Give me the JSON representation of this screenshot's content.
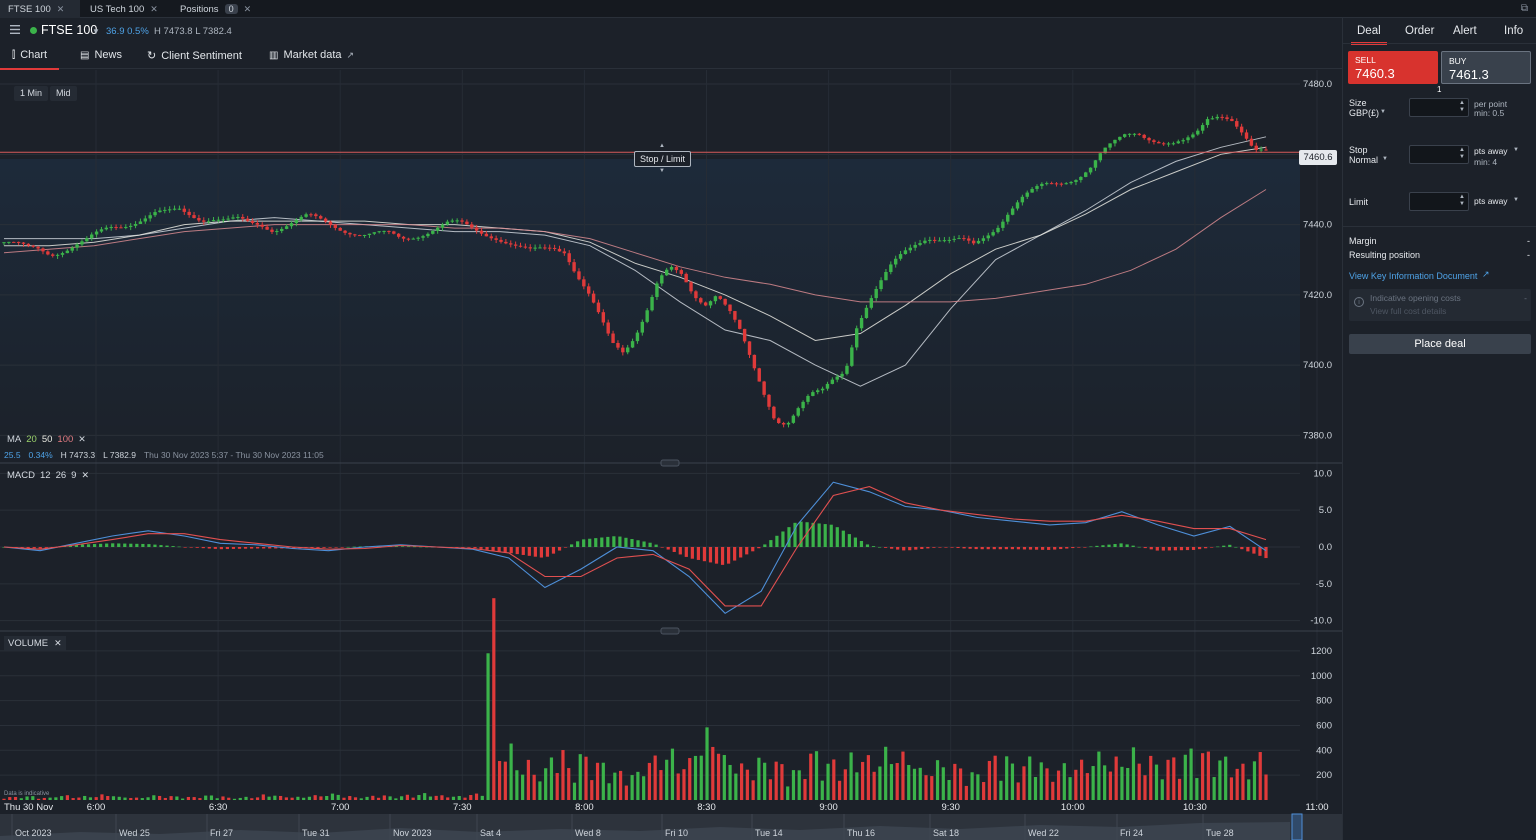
{
  "tabs": [
    {
      "label": "FTSE 100",
      "active": true
    },
    {
      "label": "US Tech 100",
      "active": false
    },
    {
      "label": "Positions",
      "badge": "0",
      "active": false
    }
  ],
  "market": {
    "name": "FTSE 100",
    "change": "36.9  0.5%",
    "high_low": "H 7473.8  L 7382.4"
  },
  "subnav": {
    "chart": "Chart",
    "news": "News",
    "sentiment": "Client Sentiment",
    "market_data": "Market data"
  },
  "timeframe": {
    "interval": "1 Min",
    "price_type": "Mid"
  },
  "chart": {
    "stop_limit_label": "Stop / Limit",
    "current_price_label": "7460.6",
    "ma_label": "MA",
    "ma_periods": [
      "20",
      "50",
      "100"
    ],
    "ma_info": [
      "25.5",
      "0.34%",
      "H 7473.3",
      "L 7382.9",
      "Thu 30 Nov 2023 5:37 - Thu 30 Nov 2023 11:05"
    ],
    "macd_label": "MACD",
    "macd_params": [
      "12",
      "26",
      "9"
    ],
    "volume_label": "VOLUME",
    "disclaimer": "Data is indicative",
    "colors": {
      "up": "#3bb34a",
      "down": "#e03a3a",
      "ma20": "#cfd5dc",
      "ma50": "#e8e8e0",
      "ma100": "#d88a8f",
      "macd": "#4e8fd8",
      "signal": "#e05050"
    }
  },
  "chart_data": [
    {
      "type": "candlestick",
      "title": "FTSE 100",
      "x_ticks": [
        "Thu 30 Nov",
        "6:00",
        "6:30",
        "7:00",
        "7:30",
        "8:00",
        "8:30",
        "9:00",
        "9:30",
        "10:00",
        "10:30",
        "11:00"
      ],
      "y_ticks": [
        7380.0,
        7400.0,
        7420.0,
        7440.0,
        7460.0,
        7480.0
      ],
      "ylim": [
        7373,
        7484
      ],
      "close_series": [
        7435,
        7434,
        7433,
        7433,
        7432,
        7433,
        7434,
        7435,
        7437,
        7439,
        7440,
        7441,
        7442,
        7443,
        7443,
        7444,
        7443,
        7442,
        7442,
        7441,
        7441,
        7440,
        7440,
        7439,
        7440,
        7441,
        7442,
        7441,
        7440,
        7439,
        7438,
        7437,
        7437,
        7437,
        7436,
        7437,
        7438,
        7439,
        7440,
        7440,
        7439,
        7438,
        7437,
        7435,
        7433,
        7432,
        7433,
        7434,
        7433,
        7426,
        7420,
        7413,
        7406,
        7404,
        7409,
        7416,
        7424,
        7427,
        7425,
        7420,
        7418,
        7421,
        7416,
        7409,
        7400,
        7392,
        7385,
        7384,
        7388,
        7391,
        7392,
        7396,
        7399,
        7412,
        7418,
        7423,
        7428,
        7432,
        7435,
        7437,
        7436,
        7435,
        7435,
        7434,
        7437,
        7440,
        7444,
        7447,
        7449,
        7451,
        7452,
        7453,
        7454,
        7456,
        7460,
        7463,
        7466,
        7467,
        7465,
        7463,
        7462,
        7463,
        7466,
        7471,
        7472,
        7470,
        7465,
        7460,
        7461
      ],
      "ma_series": [
        {
          "name": "20",
          "values": [
            7436,
            7436,
            7436,
            7437,
            7439,
            7441,
            7442,
            7441,
            7440,
            7439,
            7438,
            7438,
            7437,
            7434,
            7427,
            7418,
            7410,
            7407,
            7400,
            7394,
            7400,
            7416,
            7430,
            7437,
            7444,
            7452,
            7458,
            7462,
            7465
          ]
        },
        {
          "name": "50",
          "values": [
            7434,
            7434,
            7435,
            7437,
            7440,
            7441,
            7441,
            7441,
            7441,
            7440,
            7440,
            7439,
            7438,
            7435,
            7429,
            7425,
            7420,
            7414,
            7407,
            7409,
            7417,
            7426,
            7433,
            7437,
            7443,
            7450,
            7455,
            7460,
            7462
          ]
        },
        {
          "name": "100",
          "values": [
            7432,
            7433,
            7434,
            7436,
            7438,
            7439,
            7440,
            7440,
            7440,
            7440,
            7439,
            7439,
            7438,
            7436,
            7432,
            7428,
            7425,
            7423,
            7420,
            7418,
            7418,
            7418,
            7419,
            7421,
            7423,
            7427,
            7433,
            7442,
            7450
          ]
        }
      ],
      "current_price": 7460.6
    },
    {
      "type": "line",
      "title": "MACD 12 26 9",
      "y_ticks": [
        -10.0,
        -5.0,
        0.0,
        5.0,
        10.0
      ],
      "ylim": [
        -11,
        11
      ],
      "series": [
        {
          "name": "MACD",
          "values": [
            0,
            -0.5,
            0.5,
            1.5,
            2.2,
            1.5,
            0.5,
            0.3,
            -0.2,
            -0.5,
            0,
            0.3,
            0,
            -0.3,
            -1.5,
            -5.5,
            -3,
            0,
            -0.5,
            -4,
            -9,
            -6,
            3,
            8.8,
            7.5,
            5.5,
            5,
            4,
            3.5,
            3,
            3.3,
            4.8,
            3,
            1.5,
            2.8,
            -0.5
          ]
        },
        {
          "name": "Signal",
          "values": [
            0,
            -0.3,
            0.3,
            1,
            1.8,
            1.8,
            1,
            0.5,
            0,
            -0.3,
            -0.2,
            0.2,
            0,
            -0.2,
            -0.8,
            -4,
            -4,
            -1.5,
            -1,
            -3,
            -8,
            -8,
            0,
            7,
            8.2,
            6,
            5,
            4.4,
            3.8,
            3.5,
            3.5,
            4.3,
            3.5,
            2.5,
            2.5,
            1
          ]
        },
        {
          "name": "Histogram",
          "values": [
            0,
            -0.2,
            0.3,
            0.5,
            0.4,
            0,
            -0.3,
            -0.2,
            -0.2,
            -0.1,
            0.1,
            0.1,
            0,
            -0.1,
            -0.8,
            -1.5,
            1,
            1.5,
            0.5,
            -1.5,
            -2.5,
            0,
            3.5,
            3,
            0.2,
            -0.5,
            0,
            -0.3,
            -0.3,
            -0.4,
            0,
            0.5,
            -0.5,
            -0.4,
            0.3,
            -1.5
          ]
        }
      ]
    },
    {
      "type": "bar",
      "title": "VOLUME",
      "y_ticks": [
        200,
        400,
        600,
        800,
        1000,
        1200
      ],
      "ylim": [
        0,
        1320
      ],
      "values": [
        20,
        25,
        15,
        30,
        20,
        25,
        35,
        20,
        15,
        30,
        25,
        20,
        30,
        25,
        15,
        20,
        35,
        25,
        20,
        30,
        40,
        25,
        20,
        30,
        25,
        35,
        45,
        30,
        25,
        40,
        1250,
        350,
        250,
        200,
        320,
        230,
        300,
        250,
        190,
        180,
        280,
        320,
        260,
        400,
        450,
        280,
        230,
        270,
        250,
        200,
        320,
        260,
        230,
        300,
        280,
        330,
        300,
        200,
        250,
        230,
        180,
        260,
        300,
        240,
        280,
        200,
        230,
        250,
        300,
        270,
        330,
        280,
        260,
        300,
        350,
        320,
        280,
        230,
        300,
        260
      ]
    }
  ],
  "date_axis": [
    "Oct 2023",
    "Wed 25",
    "Fri 27",
    "Tue 31",
    "Nov 2023",
    "Sat 4",
    "Wed 8",
    "Fri 10",
    "Tue 14",
    "Thu 16",
    "Sat 18",
    "Wed 22",
    "Fri 24",
    "Tue 28"
  ],
  "panel": {
    "tabs": [
      "Deal",
      "Order",
      "Alert",
      "Info"
    ],
    "sell_label": "SELL",
    "sell_price": "7460.3",
    "buy_label": "BUY",
    "buy_price": "7461.3",
    "spread": "1",
    "size_label": "Size",
    "size_currency": "GBP(£)",
    "size_unit": "per point",
    "size_min": "min: 0.5",
    "stop_label": "Stop",
    "stop_type": "Normal",
    "stop_unit": "pts away",
    "stop_min": "min: 4",
    "limit_label": "Limit",
    "limit_unit": "pts away",
    "margin_label": "Margin",
    "margin_value": "-",
    "resulting_label": "Resulting position",
    "resulting_value": "-",
    "kid_link": "View Key Information Document",
    "costs_label": "Indicative opening costs",
    "costs_value": "-",
    "costs_link": "View full cost details",
    "place_deal": "Place deal"
  }
}
